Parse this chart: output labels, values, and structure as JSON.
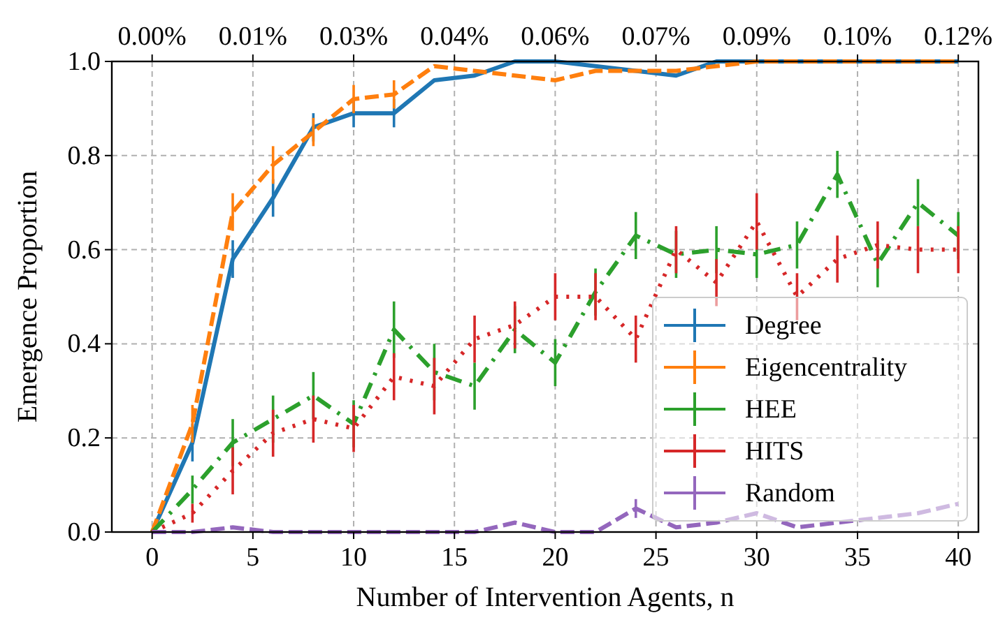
{
  "chart_data": {
    "type": "line",
    "xlabel": "Number of Intervention Agents, n",
    "ylabel": "Emergence Proportion",
    "x": [
      0,
      2,
      4,
      6,
      8,
      10,
      12,
      14,
      16,
      18,
      20,
      22,
      24,
      26,
      28,
      30,
      32,
      34,
      36,
      38,
      40
    ],
    "xlim": [
      -2,
      41
    ],
    "xticks": [
      0,
      5,
      10,
      15,
      20,
      25,
      30,
      35,
      40
    ],
    "ylim": [
      0,
      1
    ],
    "yticks": [
      {
        "value": 0,
        "label": "0.0"
      },
      {
        "value": 0.2,
        "label": "0.2"
      },
      {
        "value": 0.4,
        "label": "0.4"
      },
      {
        "value": 0.6,
        "label": "0.6"
      },
      {
        "value": 0.8,
        "label": "0.8"
      },
      {
        "value": 1,
        "label": "1.0"
      }
    ],
    "x2lim": [
      -0.006,
      0.123
    ],
    "x2ticks": [
      {
        "value": 0,
        "label": "0.00%"
      },
      {
        "value": 0.015,
        "label": "0.01%"
      },
      {
        "value": 0.03,
        "label": "0.03%"
      },
      {
        "value": 0.045,
        "label": "0.04%"
      },
      {
        "value": 0.06,
        "label": "0.06%"
      },
      {
        "value": 0.075,
        "label": "0.07%"
      },
      {
        "value": 0.09,
        "label": "0.09%"
      },
      {
        "value": 0.105,
        "label": "0.10%"
      },
      {
        "value": 0.12,
        "label": "0.12%"
      }
    ],
    "grid": true,
    "legend": "bottom right",
    "marker": "none",
    "series": [
      {
        "name": "Degree",
        "color": "#1f77b4",
        "line_style": "solid",
        "values": [
          0,
          0.19,
          0.58,
          0.71,
          0.86,
          0.89,
          0.89,
          0.96,
          0.97,
          1,
          1,
          0.99,
          0.98,
          0.97,
          1,
          1,
          1,
          1,
          1,
          1,
          1
        ],
        "errors": [
          null,
          0.04,
          0.04,
          0.04,
          0.03,
          0.03,
          0.03,
          null,
          null,
          null,
          null,
          null,
          null,
          null,
          null,
          null,
          null,
          null,
          null,
          null,
          null
        ]
      },
      {
        "name": "Eigencentrality",
        "color": "#ff7f0e",
        "line_style": "dashed",
        "values": [
          0,
          0.23,
          0.68,
          0.78,
          0.85,
          0.92,
          0.93,
          0.99,
          0.98,
          0.97,
          0.96,
          0.98,
          0.98,
          0.98,
          0.99,
          1,
          1,
          1,
          1,
          1,
          1
        ],
        "errors": [
          null,
          0.04,
          0.04,
          0.04,
          0.03,
          0.03,
          0.03,
          null,
          null,
          null,
          null,
          null,
          null,
          null,
          null,
          null,
          null,
          null,
          null,
          null,
          null
        ]
      },
      {
        "name": "HEE",
        "color": "#2ca02c",
        "line_style": "dashdot",
        "values": [
          0,
          0.09,
          0.19,
          0.24,
          0.29,
          0.23,
          0.43,
          0.34,
          0.31,
          0.43,
          0.36,
          0.51,
          0.63,
          0.59,
          0.6,
          0.59,
          0.61,
          0.76,
          0.57,
          0.7,
          0.63
        ],
        "errors": [
          null,
          0.03,
          0.05,
          0.05,
          0.05,
          0.05,
          0.06,
          0.06,
          0.05,
          0.05,
          0.05,
          0.05,
          0.05,
          0.05,
          0.05,
          0.05,
          0.05,
          0.05,
          0.05,
          0.05,
          0.05
        ]
      },
      {
        "name": "HITS",
        "color": "#d62728",
        "line_style": "dotted",
        "values": [
          0,
          0.04,
          0.13,
          0.21,
          0.24,
          0.22,
          0.33,
          0.31,
          0.41,
          0.44,
          0.5,
          0.5,
          0.41,
          0.6,
          0.53,
          0.66,
          0.5,
          0.58,
          0.61,
          0.6,
          0.6
        ],
        "errors": [
          null,
          0.02,
          0.05,
          0.05,
          0.05,
          0.05,
          0.05,
          0.06,
          0.05,
          0.05,
          0.05,
          0.05,
          0.05,
          0.05,
          0.05,
          0.06,
          0.05,
          0.05,
          0.05,
          0.05,
          0.05
        ]
      },
      {
        "name": "Random",
        "color": "#9467bd",
        "line_style": "dashed",
        "values": [
          0,
          0,
          0.01,
          0,
          0,
          0,
          0,
          0,
          0,
          0.02,
          0,
          0,
          0.05,
          0.01,
          0.02,
          0.04,
          0.01,
          0.02,
          0.03,
          0.04,
          0.06
        ],
        "errors": [
          null,
          null,
          null,
          null,
          null,
          null,
          null,
          null,
          null,
          null,
          null,
          null,
          0.02,
          null,
          null,
          null,
          null,
          null,
          null,
          null,
          null
        ]
      }
    ]
  }
}
